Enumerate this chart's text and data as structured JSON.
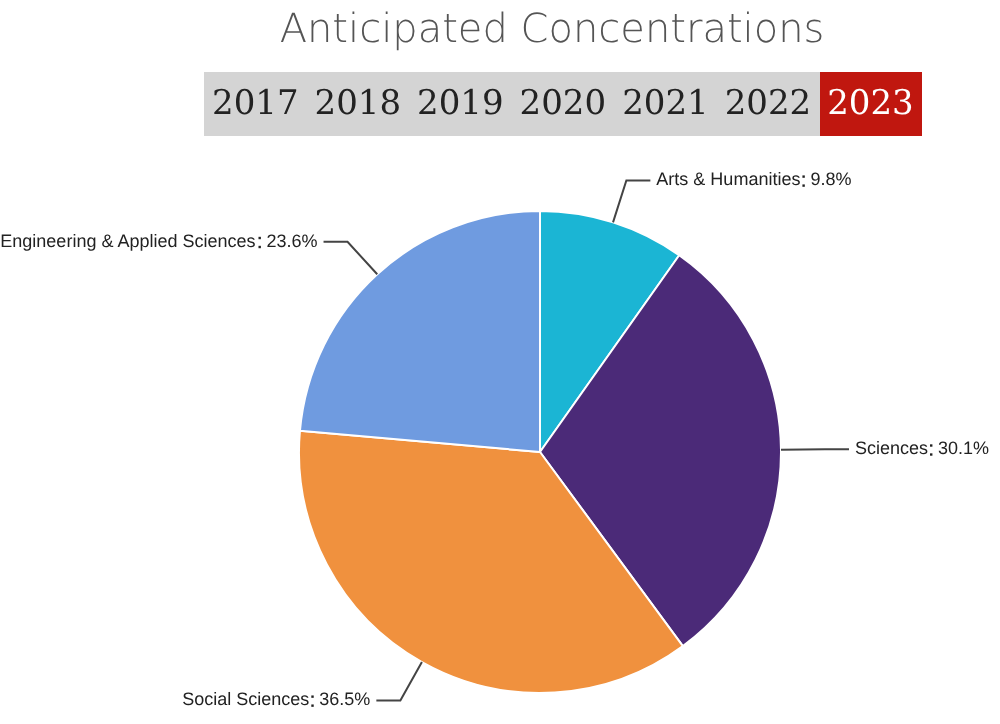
{
  "chart_data": {
    "type": "pie",
    "title": "Anticipated Concentrations",
    "annotations": [
      "2017",
      "2018",
      "2019",
      "2020",
      "2021",
      "2022",
      "2023"
    ],
    "categories": [
      "Arts & Humanities",
      "Sciences",
      "Social Sciences",
      "Engineering & Applied Sciences"
    ],
    "values": [
      9.8,
      30.1,
      36.5,
      23.6
    ],
    "value_labels": [
      "9.8%",
      "30.1%",
      "36.5%",
      "23.6%"
    ],
    "colors": [
      "#1bb5d4",
      "#4b2a78",
      "#f0913e",
      "#6f9be0"
    ],
    "legend": false
  }
}
